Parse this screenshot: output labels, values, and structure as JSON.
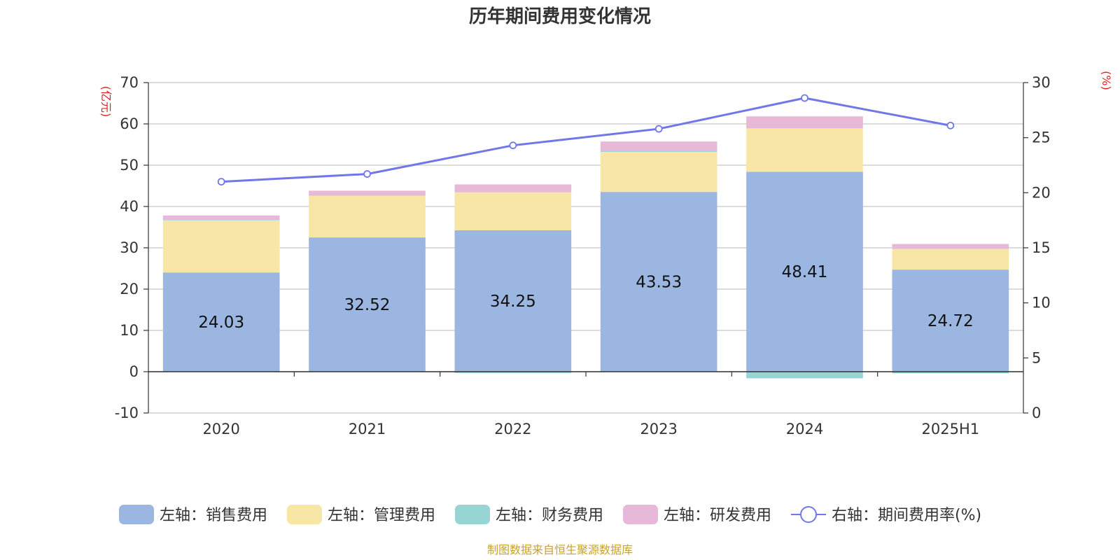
{
  "chart_data": {
    "type": "bar",
    "title": "历年期间费用变化情况",
    "left_unit": "(亿元)",
    "right_unit": "(%)",
    "categories": [
      "2020",
      "2021",
      "2022",
      "2023",
      "2024",
      "2025H1"
    ],
    "y_left": {
      "min": -10,
      "max": 70,
      "ticks": [
        -10,
        0,
        10,
        20,
        30,
        40,
        50,
        60,
        70
      ]
    },
    "y_right": {
      "min": 0,
      "max": 30,
      "ticks": [
        0,
        5,
        10,
        15,
        20,
        25,
        30
      ]
    },
    "grid": true,
    "legend_position": "bottom",
    "series": [
      {
        "name": "左轴：销售费用",
        "kind": "bar",
        "axis": "left",
        "color": "#9bb7e1",
        "values": [
          24.03,
          32.52,
          34.25,
          43.53,
          48.41,
          24.72
        ],
        "show_labels": true
      },
      {
        "name": "左轴：管理费用",
        "kind": "bar",
        "axis": "left",
        "color": "#f8e6a7",
        "values": [
          12.6,
          10.1,
          9.2,
          9.7,
          10.5,
          5.0
        ]
      },
      {
        "name": "左轴：财务费用",
        "kind": "bar",
        "axis": "left",
        "color": "#97d4d4",
        "values": [
          0.1,
          0.0,
          -0.3,
          0.3,
          -1.6,
          -0.4
        ]
      },
      {
        "name": "左轴：研发费用",
        "kind": "bar",
        "axis": "left",
        "color": "#e7b8d8",
        "values": [
          1.1,
          1.2,
          1.9,
          2.2,
          2.9,
          1.2
        ]
      },
      {
        "name": "右轴：期间费用率(%)",
        "kind": "line",
        "axis": "right",
        "color": "#7177e8",
        "values": [
          21.0,
          21.7,
          24.3,
          25.8,
          28.6,
          26.1
        ]
      }
    ],
    "source": "制图数据来自恒生聚源数据库"
  }
}
